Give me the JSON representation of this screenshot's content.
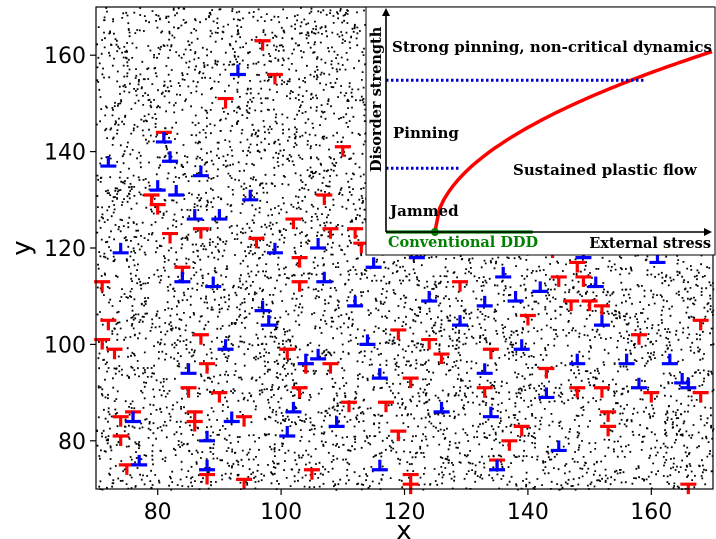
{
  "chart_data": [
    {
      "type": "scatter",
      "xlabel": "x",
      "ylabel": "y",
      "xlim": [
        70,
        170
      ],
      "ylim": [
        70,
        170
      ],
      "x_ticks": [
        "80",
        "100",
        "120",
        "140",
        "160"
      ],
      "y_ticks": [
        "80",
        "100",
        "120",
        "140",
        "160"
      ],
      "background_points": {
        "count": 7000,
        "color": "#000000"
      },
      "series": [
        {
          "color": "#ff0000",
          "marker": "dislocation-t-inverted",
          "points": [
            [
              71,
              113
            ],
            [
              71,
              101
            ],
            [
              72,
              105
            ],
            [
              73,
              99
            ],
            [
              74,
              85
            ],
            [
              74,
              81
            ],
            [
              75,
              75
            ],
            [
              76,
              86
            ],
            [
              79,
              131
            ],
            [
              80,
              129
            ],
            [
              81,
              144
            ],
            [
              82,
              123
            ],
            [
              84,
              116
            ],
            [
              85,
              91
            ],
            [
              86,
              86
            ],
            [
              86,
              84
            ],
            [
              87,
              102
            ],
            [
              87,
              124
            ],
            [
              88,
              73
            ],
            [
              88,
              96
            ],
            [
              90,
              90
            ],
            [
              91,
              151
            ],
            [
              94,
              85
            ],
            [
              94,
              72
            ],
            [
              96,
              122
            ],
            [
              97,
              163
            ],
            [
              99,
              156
            ],
            [
              101,
              99
            ],
            [
              102,
              126
            ],
            [
              103,
              118
            ],
            [
              103,
              113
            ],
            [
              103,
              91
            ],
            [
              104,
              96
            ],
            [
              105,
              74
            ],
            [
              107,
              131
            ],
            [
              108,
              124
            ],
            [
              108,
              96
            ],
            [
              110,
              141
            ],
            [
              111,
              88
            ],
            [
              112,
              124
            ],
            [
              113,
              121
            ],
            [
              117,
              88
            ],
            [
              119,
              103
            ],
            [
              119,
              82
            ],
            [
              121,
              93
            ],
            [
              121,
              73
            ],
            [
              121,
              71
            ],
            [
              124,
              101
            ],
            [
              126,
              98
            ],
            [
              127,
              123
            ],
            [
              129,
              113
            ],
            [
              133,
              91
            ],
            [
              134,
              99
            ],
            [
              135,
              76
            ],
            [
              137,
              80
            ],
            [
              139,
              83
            ],
            [
              140,
              106
            ],
            [
              143,
              95
            ],
            [
              144,
              120
            ],
            [
              145,
              114
            ],
            [
              147,
              109
            ],
            [
              148,
              117
            ],
            [
              148,
              91
            ],
            [
              149,
              114
            ],
            [
              150,
              109
            ],
            [
              152,
              108
            ],
            [
              152,
              91
            ],
            [
              153,
              86
            ],
            [
              153,
              83
            ],
            [
              158,
              102
            ],
            [
              160,
              90
            ],
            [
              166,
              71
            ],
            [
              168,
              105
            ],
            [
              168,
              90
            ]
          ]
        },
        {
          "color": "#0000ff",
          "marker": "dislocation-t-upright",
          "points": [
            [
              72,
              137
            ],
            [
              74,
              119
            ],
            [
              76,
              84
            ],
            [
              77,
              75
            ],
            [
              80,
              132
            ],
            [
              81,
              142
            ],
            [
              82,
              138
            ],
            [
              83,
              131
            ],
            [
              84,
              113
            ],
            [
              85,
              94
            ],
            [
              86,
              126
            ],
            [
              87,
              135
            ],
            [
              88,
              80
            ],
            [
              88,
              74
            ],
            [
              89,
              112
            ],
            [
              90,
              126
            ],
            [
              91,
              99
            ],
            [
              92,
              84
            ],
            [
              93,
              156
            ],
            [
              95,
              130
            ],
            [
              97,
              107
            ],
            [
              98,
              104
            ],
            [
              99,
              119
            ],
            [
              101,
              81
            ],
            [
              102,
              86
            ],
            [
              104,
              96
            ],
            [
              106,
              97
            ],
            [
              106,
              120
            ],
            [
              107,
              113
            ],
            [
              109,
              83
            ],
            [
              112,
              108
            ],
            [
              114,
              100
            ],
            [
              115,
              116
            ],
            [
              116,
              93
            ],
            [
              116,
              74
            ],
            [
              119,
              122
            ],
            [
              122,
              118
            ],
            [
              124,
              109
            ],
            [
              126,
              86
            ],
            [
              127,
              120
            ],
            [
              129,
              104
            ],
            [
              132,
              119
            ],
            [
              133,
              108
            ],
            [
              133,
              94
            ],
            [
              134,
              85
            ],
            [
              135,
              74
            ],
            [
              136,
              114
            ],
            [
              138,
              109
            ],
            [
              139,
              99
            ],
            [
              142,
              111
            ],
            [
              143,
              89
            ],
            [
              145,
              78
            ],
            [
              148,
              96
            ],
            [
              149,
              118
            ],
            [
              151,
              112
            ],
            [
              152,
              104
            ],
            [
              154,
              119
            ],
            [
              156,
              96
            ],
            [
              158,
              91
            ],
            [
              161,
              117
            ],
            [
              163,
              96
            ],
            [
              165,
              92
            ],
            [
              166,
              91
            ]
          ]
        }
      ]
    },
    {
      "type": "line",
      "xlabel": "External stress",
      "ylabel": "Disorder strength",
      "xlim": [
        0,
        1
      ],
      "ylim": [
        0,
        1
      ],
      "regions": {
        "strong": "Strong pinning, non-critical dynamics",
        "pinning": "Pinning",
        "plastic": "Sustained plastic flow",
        "jammed": "Jammed",
        "conventional": "Conventional DDD"
      },
      "series": [
        {
          "color": "#ff0000",
          "x": [
            0.15,
            0.16,
            0.2,
            0.3,
            0.45,
            0.6,
            0.8,
            1.0
          ],
          "y": [
            0.0,
            0.17,
            0.3,
            0.44,
            0.57,
            0.66,
            0.75,
            0.82
          ]
        },
        {
          "color": "#0000cc",
          "style": "dotted",
          "x": [
            0.0,
            0.79
          ],
          "y": [
            0.69,
            0.69
          ]
        },
        {
          "color": "#0000cc",
          "style": "dotted",
          "x": [
            0.0,
            0.23
          ],
          "y": [
            0.29,
            0.29
          ]
        },
        {
          "color": "#008000",
          "x": [
            0.0,
            0.45
          ],
          "y": [
            0.0,
            0.0
          ]
        }
      ],
      "critical_point": {
        "x": 0.15,
        "y": 0.0,
        "color": "#008000"
      }
    }
  ]
}
